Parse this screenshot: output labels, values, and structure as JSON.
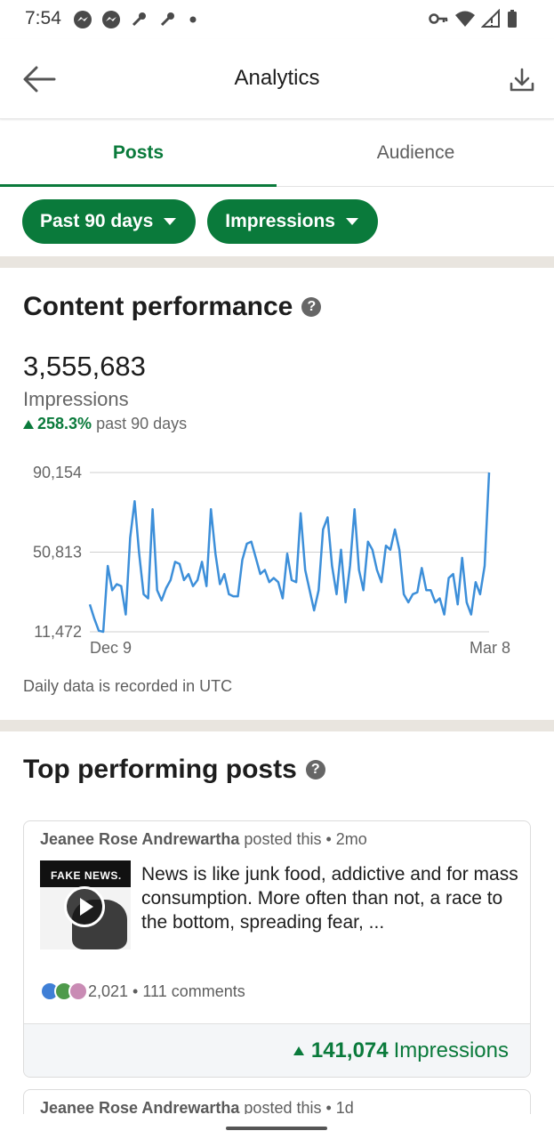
{
  "status_bar": {
    "time": "7:54",
    "left_icons": [
      "messenger-icon",
      "messenger-icon",
      "wrench-icon",
      "wrench-icon",
      "dot-icon"
    ],
    "right_icons": [
      "vpn-key-icon",
      "wifi-icon",
      "signal-icon",
      "battery-icon"
    ]
  },
  "app_bar": {
    "title": "Analytics",
    "back_icon": "arrow-left-icon",
    "download_icon": "download-icon"
  },
  "tabs": [
    {
      "label": "Posts",
      "selected": true
    },
    {
      "label": "Audience",
      "selected": false
    }
  ],
  "filters": [
    {
      "label": "Past 90 days"
    },
    {
      "label": "Impressions"
    }
  ],
  "content_performance": {
    "title": "Content performance",
    "total": "3,555,683",
    "metric": "Impressions",
    "change_pct": "258.3%",
    "change_period": "past 90 days",
    "note": "Daily data is recorded in UTC"
  },
  "chart_data": {
    "type": "line",
    "y_ticks": [
      "90,154",
      "50,813",
      "11,472"
    ],
    "x_tick_labels": [
      "Dec 9",
      "Mar 8"
    ],
    "ylim": [
      11472,
      90154
    ],
    "grid": true,
    "color": "#3d8fd9",
    "values": [
      25000,
      18000,
      12000,
      11472,
      44000,
      32000,
      35000,
      34000,
      20000,
      58000,
      76000,
      50000,
      30000,
      28000,
      72000,
      32000,
      27000,
      33000,
      37000,
      46000,
      45000,
      37000,
      40000,
      34000,
      37000,
      46000,
      34000,
      72000,
      50000,
      35000,
      40000,
      30000,
      29000,
      29000,
      47000,
      55000,
      56000,
      48000,
      40000,
      42000,
      36000,
      38000,
      36000,
      28000,
      50000,
      37000,
      36000,
      70000,
      42000,
      32000,
      22000,
      32000,
      62000,
      68000,
      44000,
      30000,
      52000,
      26000,
      44000,
      72000,
      42000,
      32000,
      56000,
      52000,
      42000,
      36000,
      54000,
      52000,
      62000,
      52000,
      30000,
      26000,
      30000,
      31000,
      43000,
      32000,
      32000,
      26000,
      28000,
      20000,
      38000,
      40000,
      25000,
      48000,
      26000,
      20000,
      36000,
      30000,
      44000,
      90154
    ]
  },
  "top_posts": {
    "title": "Top performing posts",
    "posts": [
      {
        "author": "Jeanee Rose Andrewartha",
        "meta": " posted this • 2mo",
        "thumb_caption": "FAKE NEWS.",
        "text": "News is like junk food, addictive and for mass consumption. More often than not, a race to the bottom, spreading fear, ...",
        "reactions": "2,021",
        "comments": "111 comments",
        "impressions": "141,074",
        "impressions_label": "Impressions"
      },
      {
        "author": "Jeanee Rose Andrewartha",
        "meta": " posted this • 1d"
      }
    ]
  },
  "colors": {
    "accent": "#0a7a3b",
    "line": "#3d8fd9",
    "divider": "#e9e5df"
  }
}
